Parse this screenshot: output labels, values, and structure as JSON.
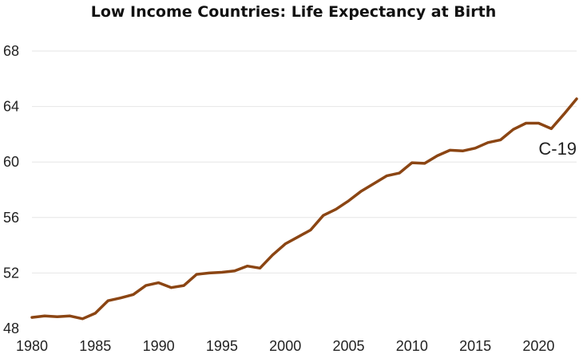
{
  "chart_data": {
    "type": "line",
    "title": "Low Income Countries: Life Expectancy at Birth",
    "xlabel": "",
    "ylabel": "",
    "xlim": [
      1980,
      2023
    ],
    "ylim": [
      48,
      68
    ],
    "xticks": [
      1980,
      1985,
      1990,
      1995,
      2000,
      2005,
      2010,
      2015,
      2020
    ],
    "yticks": [
      48,
      52,
      56,
      60,
      64,
      68
    ],
    "grid": "horizontal",
    "series": [
      {
        "name": "Life expectancy at birth",
        "color": "#8B4513",
        "x": [
          1980,
          1981,
          1982,
          1983,
          1984,
          1985,
          1986,
          1987,
          1988,
          1989,
          1990,
          1991,
          1992,
          1993,
          1994,
          1995,
          1996,
          1997,
          1998,
          1999,
          2000,
          2001,
          2002,
          2003,
          2004,
          2005,
          2006,
          2007,
          2008,
          2009,
          2010,
          2011,
          2012,
          2013,
          2014,
          2015,
          2016,
          2017,
          2018,
          2019,
          2020,
          2021,
          2022,
          2023
        ],
        "values": [
          48.8,
          48.9,
          48.85,
          48.9,
          48.7,
          49.1,
          50.0,
          50.2,
          50.45,
          51.1,
          51.3,
          50.95,
          51.1,
          51.9,
          52.0,
          52.05,
          52.15,
          52.5,
          52.35,
          53.3,
          54.1,
          54.6,
          55.1,
          56.15,
          56.6,
          57.2,
          57.9,
          58.45,
          59.0,
          59.2,
          59.95,
          59.9,
          60.45,
          60.85,
          60.8,
          61.0,
          61.4,
          61.6,
          62.35,
          62.8,
          62.8,
          62.4,
          63.45,
          64.55
        ]
      }
    ],
    "annotations": [
      {
        "text": "C-19",
        "x": 2021.5,
        "y": 61.0
      }
    ]
  }
}
